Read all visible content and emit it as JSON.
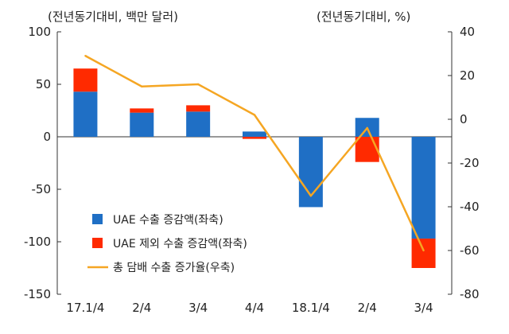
{
  "chart_data": {
    "type": "bar",
    "categories": [
      "17.1/4",
      "2/4",
      "3/4",
      "4/4",
      "18.1/4",
      "2/4",
      "3/4"
    ],
    "left_unit": "(전년동기대비, 백만 달러)",
    "right_unit": "(전년동기대비, %)",
    "left_ylim": [
      -150,
      100
    ],
    "left_ticks": [
      "100",
      "50",
      "0",
      "-50",
      "-100",
      "-150"
    ],
    "right_ylim": [
      -80,
      40
    ],
    "right_ticks": [
      "40",
      "20",
      "0",
      "-20",
      "-40",
      "-60",
      "-80"
    ],
    "legend_position": "bottom-left",
    "series": [
      {
        "name": "UAE 수출 증감액(좌축)",
        "type": "bar",
        "axis": "left",
        "color": "#1f6fc5",
        "values": [
          43,
          23,
          24,
          5,
          -67,
          18,
          -97
        ]
      },
      {
        "name": "UAE 제외 수출 증감액(좌축)",
        "type": "bar",
        "axis": "left",
        "color": "#ff2a00",
        "values": [
          22,
          4,
          6,
          -2,
          0,
          -24,
          -28
        ]
      },
      {
        "name": "총 담배 수출 증가율(우축)",
        "type": "line",
        "axis": "right",
        "color": "#f5a623",
        "values": [
          29,
          15,
          16,
          2,
          -35,
          -4,
          -60
        ]
      }
    ]
  }
}
